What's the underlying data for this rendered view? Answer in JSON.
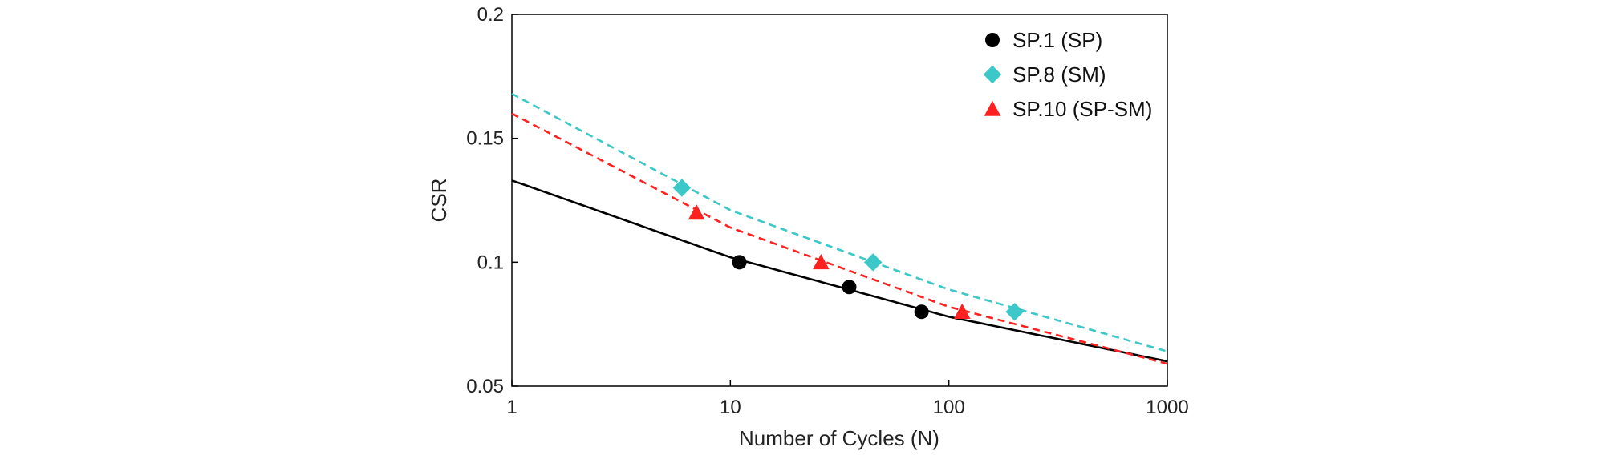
{
  "chart_data": {
    "type": "scatter",
    "xlabel": "Number of Cycles (N)",
    "ylabel": "CSR",
    "xscale": "log",
    "xlim": [
      1,
      1000
    ],
    "ylim": [
      0.05,
      0.2
    ],
    "xticks": [
      1,
      10,
      100,
      1000
    ],
    "xtick_labels": [
      "1",
      "10",
      "100",
      "1000"
    ],
    "yticks": [
      0.05,
      0.1,
      0.15,
      0.2
    ],
    "ytick_labels": [
      "0.05",
      "0.1",
      "0.15",
      "0.2"
    ],
    "grid": false,
    "legend_position": "top-right",
    "series": [
      {
        "name": "SP.1 (SP)",
        "marker": "circle",
        "color": "#000000",
        "line_style": "solid",
        "points": [
          [
            11,
            0.1
          ],
          [
            35,
            0.09
          ],
          [
            75,
            0.08
          ]
        ],
        "fit": [
          [
            1,
            0.133
          ],
          [
            10,
            0.102
          ],
          [
            100,
            0.078
          ],
          [
            1000,
            0.06
          ]
        ]
      },
      {
        "name": "SP.8 (SM)",
        "marker": "diamond",
        "color": "#3cc8c8",
        "line_style": "dashed",
        "points": [
          [
            6,
            0.13
          ],
          [
            45,
            0.1
          ],
          [
            200,
            0.08
          ]
        ],
        "fit": [
          [
            1,
            0.168
          ],
          [
            10,
            0.121
          ],
          [
            100,
            0.089
          ],
          [
            1000,
            0.064
          ]
        ]
      },
      {
        "name": "SP.10 (SP-SM)",
        "marker": "triangle",
        "color": "#ff2020",
        "line_style": "dashed",
        "points": [
          [
            7,
            0.12
          ],
          [
            26,
            0.1
          ],
          [
            115,
            0.08
          ]
        ],
        "fit": [
          [
            1,
            0.16
          ],
          [
            10,
            0.114
          ],
          [
            100,
            0.082
          ],
          [
            1000,
            0.059
          ]
        ]
      }
    ]
  }
}
